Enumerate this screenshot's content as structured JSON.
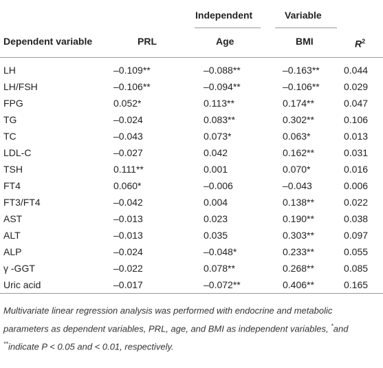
{
  "table": {
    "group_headers": [
      "Independent",
      "Variable"
    ],
    "columns": [
      "Dependent variable",
      "PRL",
      "Age",
      "BMI",
      {
        "text": "R",
        "sup": "2"
      }
    ],
    "rows": [
      [
        "LH",
        "–0.109**",
        "–0.088**",
        "–0.163**",
        "0.044"
      ],
      [
        "LH/FSH",
        "–0.106**",
        "–0.094**",
        "–0.106**",
        "0.029"
      ],
      [
        "FPG",
        "0.052*",
        "0.113**",
        "0.174**",
        "0.047"
      ],
      [
        "TG",
        "–0.024",
        "0.083**",
        "0.302**",
        "0.106"
      ],
      [
        "TC",
        "–0.043",
        "0.073*",
        "0.063*",
        "0.013"
      ],
      [
        "LDL-C",
        "–0.027",
        "0.042",
        "0.162**",
        "0.031"
      ],
      [
        "TSH",
        "0.111**",
        "0.001",
        "0.070*",
        "0.016"
      ],
      [
        "FT4",
        "0.060*",
        "–0.006",
        "–0.043",
        "0.006"
      ],
      [
        "FT3/FT4",
        "–0.042",
        "0.004",
        "0.138**",
        "0.022"
      ],
      [
        "AST",
        "–0.013",
        "0.023",
        "0.190**",
        "0.038"
      ],
      [
        "ALT",
        "–0.013",
        "0.035",
        "0.303**",
        "0.097"
      ],
      [
        "ALP",
        "–0.024",
        "–0.048*",
        "0.233**",
        "0.055"
      ],
      [
        "γ -GGT",
        "–0.022",
        "0.078**",
        "0.268**",
        "0.085"
      ],
      [
        "Uric acid",
        "–0.017",
        "–0.072**",
        "0.406**",
        "0.165"
      ]
    ]
  },
  "footnote": {
    "part1": "Multivariate linear regression analysis was performed with endocrine and metabolic parameters as dependent variables, PRL, age, and BMI as independent variables, ",
    "sup1": "*",
    "part2": "and ",
    "sup2": "**",
    "part3": "indicate P < 0.05 and < 0.01, respectively."
  }
}
